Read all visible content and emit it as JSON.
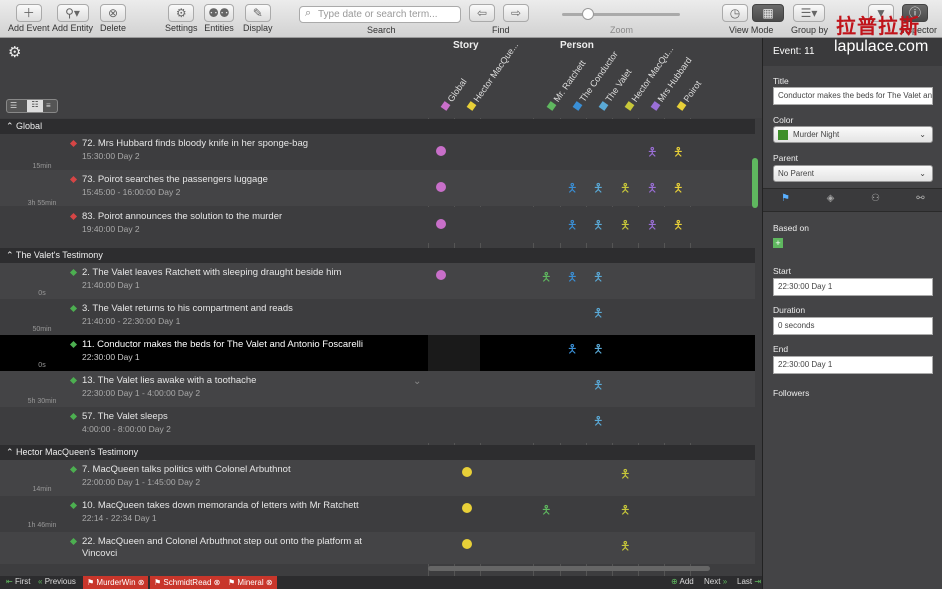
{
  "toolbar": {
    "add_event": "Add Event",
    "add_entity": "Add Entity",
    "delete": "Delete",
    "settings": "Settings",
    "entities": "Entities",
    "display": "Display",
    "search_placeholder": "Type date or search term...",
    "search_label": "Search",
    "find": "Find",
    "zoom": "Zoom",
    "view_mode": "View Mode",
    "group_by": "Group by",
    "inspector": "Inspector"
  },
  "watermark": "拉普拉斯",
  "watermark2": "lapulace.com",
  "col_groups": {
    "story": "Story",
    "person": "Person"
  },
  "columns": [
    {
      "name": "Global",
      "color": "#c86fc9"
    },
    {
      "name": "Hector MacQue...",
      "color": "#e8d038"
    },
    {
      "name": "Mr. Ratchett",
      "color": "#5fb85f"
    },
    {
      "name": "The Conductor",
      "color": "#3a8fd6"
    },
    {
      "name": "The Valet",
      "color": "#5aa9d6"
    },
    {
      "name": "Hector MacQu...",
      "color": "#c8c83a"
    },
    {
      "name": "Mrs Hubbard",
      "color": "#9a6fd6"
    },
    {
      "name": "Poirot",
      "color": "#e8d038"
    }
  ],
  "sections": [
    {
      "title": "Global"
    },
    {
      "title": "The Valet's Testimony"
    },
    {
      "title": "Hector MacQueen's Testimony"
    }
  ],
  "rows": [
    {
      "title": "72. Mrs Hubbard finds bloody knife in her sponge-bag",
      "date": "15:30:00 Day 2",
      "gap": "15min"
    },
    {
      "title": "73. Poirot searches the passengers luggage",
      "date": "15:45:00 - 16:00:00 Day 2",
      "gap": "3h 55min"
    },
    {
      "title": "83. Poirot announces the solution to the murder",
      "date": "19:40:00 Day 2",
      "gap": ""
    },
    {
      "title": "2. The Valet leaves Ratchett with sleeping draught beside him",
      "date": "21:40:00 Day 1",
      "gap": "0s"
    },
    {
      "title": "3. The Valet returns to his compartment and reads",
      "date": "21:40:00 - 22:30:00 Day 1",
      "gap": "50min"
    },
    {
      "title": "11. Conductor makes the beds for The Valet and Antonio Foscarelli",
      "date": "22:30:00 Day 1",
      "gap": "0s"
    },
    {
      "title": "13. The Valet lies awake with a toothache",
      "date": "22:30:00 Day 1 - 4:00:00 Day 2",
      "gap": "5h 30min"
    },
    {
      "title": "57. The Valet sleeps",
      "date": "4:00:00 - 8:00:00 Day 2",
      "gap": ""
    },
    {
      "title": "7. MacQueen talks politics with Colonel Arbuthnot",
      "date": "22:00:00 Day 1 - 1:45:00 Day 2",
      "gap": "14min"
    },
    {
      "title": "10. MacQueen takes down memoranda of letters with Mr Ratchett",
      "date": "22:14 - 22:34 Day 1",
      "gap": "1h 46min"
    },
    {
      "title": "22. MacQueen and Colonel Arbuthnot step out onto the platform at",
      "title2": "Vincovci",
      "date": "0:00:00 Day 2",
      "gap": ""
    }
  ],
  "bottom": {
    "first": "First",
    "previous": "Previous",
    "tags": [
      "MurderWin",
      "SchmidtRead",
      "Mineral"
    ],
    "add": "Add",
    "next": "Next",
    "last": "Last"
  },
  "inspector": {
    "event_label": "Event: 11",
    "title_label": "Title",
    "title_value": "Conductor makes the beds for The Valet and",
    "color_label": "Color",
    "color_value": "Murder Night",
    "color_swatch": "#3e8f2a",
    "parent_label": "Parent",
    "parent_value": "No Parent",
    "based_on": "Based on",
    "start_label": "Start",
    "start_value": "22:30:00 Day 1",
    "duration_label": "Duration",
    "duration_value": "0 seconds",
    "end_label": "End",
    "end_value": "22:30:00 Day 1",
    "followers": "Followers"
  }
}
